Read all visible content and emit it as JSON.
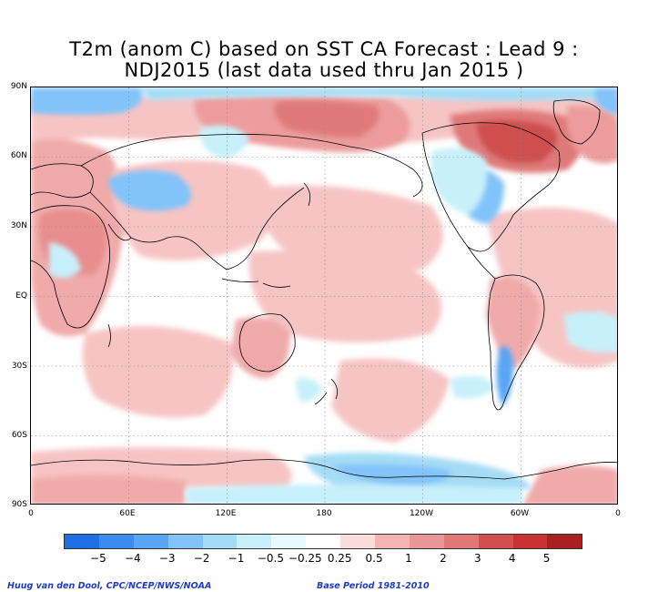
{
  "title": {
    "line1": "T2m (anom C) based on SST CA Forecast : Lead 9 :",
    "line2": "NDJ2015 (last data used thru Jan 2015 )"
  },
  "map": {
    "projection": "equirectangular",
    "lon_range": [
      0,
      360
    ],
    "lat_range": [
      -90,
      90
    ],
    "grid": "dotted graticule every 30 degrees",
    "y_axis_labels": [
      "90N",
      "60N",
      "30N",
      "EQ",
      "30S",
      "60S",
      "90S"
    ],
    "x_axis_labels": [
      "0",
      "60E",
      "120E",
      "180",
      "120W",
      "60W",
      "0"
    ]
  },
  "colorbar": {
    "labels": [
      "−5",
      "−4",
      "−3",
      "−2",
      "−1",
      "−0.5",
      "−0.25",
      "0.25",
      "0.5",
      "1",
      "2",
      "3",
      "4",
      "5"
    ],
    "colors": [
      "#1e6ee6",
      "#3c8cf0",
      "#5aa5f5",
      "#82c3fa",
      "#a5dcf5",
      "#c8f0fa",
      "#e6faff",
      "#ffffff",
      "#fadcdc",
      "#f5b4b4",
      "#eb9696",
      "#e17878",
      "#d25050",
      "#c83232",
      "#aa2020"
    ]
  },
  "credits": {
    "author": "Huug van den Dool, CPC/NCEP/NWS/NOAA",
    "base_period": "Base Period 1981-2010"
  },
  "colors": {
    "warm_light": "#fadcdc",
    "warm_mid": "#f0a8a8",
    "warm_strong": "#d25050",
    "cool_light": "#c8f0fa",
    "cool_mid": "#82c3fa",
    "cool_strong": "#3c8cf0",
    "credit_text": "#1e3cc8"
  }
}
